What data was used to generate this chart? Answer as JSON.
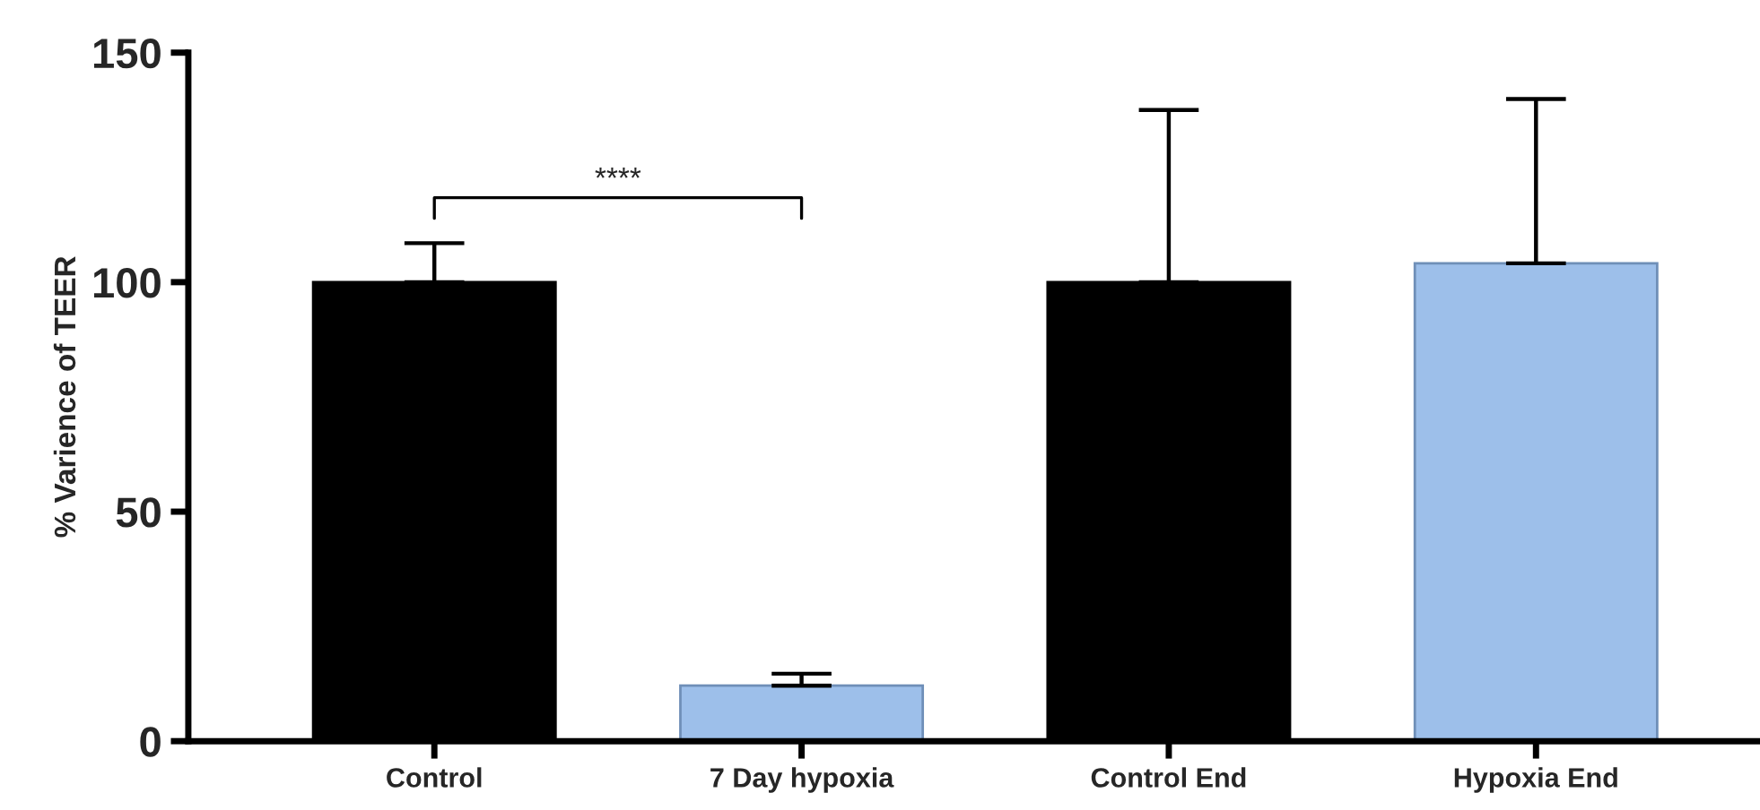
{
  "chart_data": {
    "type": "bar",
    "ylabel": "% Varience of TEER",
    "categories": [
      "Control",
      "7 Day hypoxia",
      "Control End",
      "Hypoxia End"
    ],
    "values": [
      100,
      12.1,
      100,
      104.1
    ],
    "colors": [
      "#000000",
      "#90bef7",
      "#000000",
      "#90bef7"
    ],
    "errors": [
      [
        100,
        108.5
      ],
      [
        12.1,
        14.7
      ],
      [
        100,
        137.5
      ],
      [
        104.1,
        139.9
      ]
    ],
    "ylim": [
      0,
      150
    ],
    "yticks": [
      0,
      50,
      100,
      150
    ],
    "grid": false,
    "legend": false,
    "annotations": [
      "****"
    ]
  }
}
